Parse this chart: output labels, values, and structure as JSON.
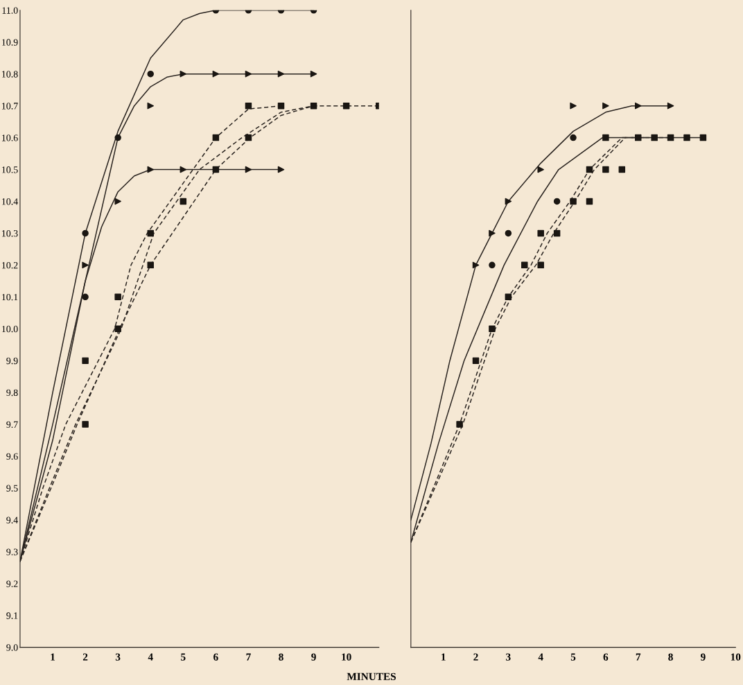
{
  "chart_data": [
    {
      "type": "line",
      "xlabel": "MINUTES",
      "xlim": [
        0,
        11
      ],
      "ylim": [
        9.0,
        11.0
      ],
      "xticks": [
        1,
        2,
        3,
        4,
        5,
        6,
        7,
        8,
        9,
        10
      ],
      "yticks": [
        {
          "value": 9.0,
          "label": "9.0"
        },
        9.1,
        9.2,
        9.3,
        9.4,
        9.5,
        9.6,
        9.7,
        9.8,
        9.9,
        {
          "value": 10.0,
          "label": "10.0"
        },
        10.1,
        10.2,
        10.3,
        10.4,
        10.5,
        10.6,
        10.7,
        10.8,
        10.9,
        {
          "value": 11.0,
          "label": "11.0"
        }
      ],
      "series": [
        {
          "color": "#2a2420",
          "line_style": "solid",
          "x": [
            0,
            1,
            2,
            3,
            4,
            5,
            5.5,
            6,
            9
          ],
          "values": [
            9.27,
            9.8,
            10.3,
            10.62,
            10.85,
            10.97,
            10.99,
            11.0,
            11.0
          ]
        },
        {
          "color": "#2a2420",
          "line_style": "solid",
          "x": [
            0,
            1,
            2,
            3,
            3.5,
            4,
            4.5,
            5,
            9
          ],
          "values": [
            9.27,
            9.7,
            10.15,
            10.6,
            10.7,
            10.76,
            10.79,
            10.8,
            10.8
          ]
        },
        {
          "color": "#2a2420",
          "line_style": "solid",
          "x": [
            0,
            1,
            1.5,
            2,
            2.5,
            3,
            3.5,
            4,
            8
          ],
          "values": [
            9.27,
            9.65,
            9.9,
            10.15,
            10.32,
            10.43,
            10.48,
            10.5,
            10.5
          ]
        },
        {
          "color": "#2a2420",
          "line_style": "dashed",
          "x": [
            0,
            0.7,
            1.4,
            2.9,
            3.4,
            3.9,
            6.0,
            7.0,
            8
          ],
          "values": [
            9.27,
            9.5,
            9.7,
            10.0,
            10.2,
            10.3,
            10.6,
            10.69,
            10.7
          ]
        },
        {
          "color": "#2a2420",
          "line_style": "dashed",
          "x": [
            0,
            0.9,
            1.7,
            3.1,
            4.1,
            5.5,
            6.8,
            8,
            9
          ],
          "values": [
            9.27,
            9.5,
            9.7,
            10.0,
            10.3,
            10.5,
            10.6,
            10.68,
            10.7
          ]
        },
        {
          "color": "#2a2420",
          "line_style": "dashed",
          "x": [
            0,
            0.95,
            1.75,
            3.05,
            4.0,
            6.0,
            7.05,
            8,
            9,
            11
          ],
          "values": [
            9.27,
            9.5,
            9.7,
            10.0,
            10.2,
            10.5,
            10.6,
            10.67,
            10.7,
            10.7
          ]
        },
        {
          "type": "scatter",
          "color": "#1a1612",
          "marker": "circle",
          "x": [
            2,
            2,
            3,
            4,
            6,
            7,
            8,
            9
          ],
          "values": [
            10.1,
            10.3,
            10.6,
            10.8,
            11.0,
            11.0,
            11.0,
            11.0
          ]
        },
        {
          "type": "scatter",
          "color": "#1a1612",
          "marker": "triangle",
          "x": [
            4,
            5,
            6,
            7,
            8,
            9
          ],
          "values": [
            10.7,
            10.8,
            10.8,
            10.8,
            10.8,
            10.8
          ]
        },
        {
          "type": "scatter",
          "color": "#1a1612",
          "marker": "triangle",
          "x": [
            2,
            3,
            4,
            5,
            7,
            8
          ],
          "values": [
            10.2,
            10.4,
            10.5,
            10.5,
            10.5,
            10.5
          ]
        },
        {
          "type": "scatter",
          "color": "#1a1612",
          "marker": "square",
          "x": [
            2,
            2,
            3,
            3,
            4,
            4,
            5,
            6,
            6,
            7,
            7,
            8,
            9,
            10,
            11
          ],
          "values": [
            9.7,
            9.9,
            10.0,
            10.1,
            10.2,
            10.3,
            10.4,
            10.5,
            10.6,
            10.6,
            10.7,
            10.7,
            10.7,
            10.7,
            10.7
          ]
        }
      ]
    },
    {
      "type": "line",
      "xlim": [
        0,
        10
      ],
      "ylim": [
        9.0,
        11.0
      ],
      "tick_labels": "x",
      "xticks": [
        1,
        2,
        3,
        4,
        5,
        6,
        7,
        8,
        9,
        10
      ],
      "series": [
        {
          "color": "#2a2420",
          "line_style": "solid",
          "x": [
            0,
            0.62,
            1.2,
            2,
            2.5,
            3,
            4,
            5,
            6,
            6.8,
            8
          ],
          "values": [
            9.4,
            9.64,
            9.9,
            10.2,
            10.3,
            10.4,
            10.52,
            10.62,
            10.68,
            10.7,
            10.7
          ]
        },
        {
          "color": "#2a2420",
          "line_style": "solid",
          "x": [
            0,
            0.85,
            1.64,
            2.87,
            3.9,
            4.55,
            5.9,
            6.5,
            9
          ],
          "values": [
            9.33,
            9.64,
            9.9,
            10.2,
            10.4,
            10.5,
            10.6,
            10.6,
            10.6
          ]
        },
        {
          "color": "#2a2420",
          "line_style": "dashed",
          "x": [
            0,
            1.5,
            2.5,
            3.0,
            3.7,
            4.2,
            4.9,
            5.5,
            6.5,
            7.2
          ],
          "values": [
            9.33,
            9.7,
            10.0,
            10.1,
            10.2,
            10.3,
            10.4,
            10.5,
            10.6,
            10.6
          ]
        },
        {
          "color": "#2a2420",
          "line_style": "dashed",
          "x": [
            0,
            1.6,
            2.6,
            3.1,
            3.85,
            4.4,
            5.05,
            5.65,
            6.6,
            8
          ],
          "values": [
            9.33,
            9.7,
            10.0,
            10.1,
            10.2,
            10.3,
            10.4,
            10.5,
            10.6,
            10.6
          ]
        },
        {
          "type": "scatter",
          "color": "#1a1612",
          "marker": "circle",
          "x": [
            2.5,
            3,
            4.5,
            5
          ],
          "values": [
            10.2,
            10.3,
            10.4,
            10.6
          ]
        },
        {
          "type": "scatter",
          "color": "#1a1612",
          "marker": "triangle",
          "x": [
            2,
            2.5,
            3,
            4,
            5,
            6,
            7,
            8
          ],
          "values": [
            10.2,
            10.3,
            10.4,
            10.5,
            10.7,
            10.7,
            10.7,
            10.7
          ]
        },
        {
          "type": "scatter",
          "color": "#1a1612",
          "marker": "square",
          "x": [
            1.5,
            2,
            2.5,
            3,
            3.5,
            4,
            4,
            4.5,
            5,
            5.5,
            5.5,
            6,
            6,
            6.5,
            7,
            7.5,
            8,
            8.5,
            9
          ],
          "values": [
            9.7,
            9.9,
            10.0,
            10.1,
            10.2,
            10.2,
            10.3,
            10.3,
            10.4,
            10.4,
            10.5,
            10.5,
            10.6,
            10.5,
            10.6,
            10.6,
            10.6,
            10.6,
            10.6
          ]
        }
      ]
    }
  ]
}
